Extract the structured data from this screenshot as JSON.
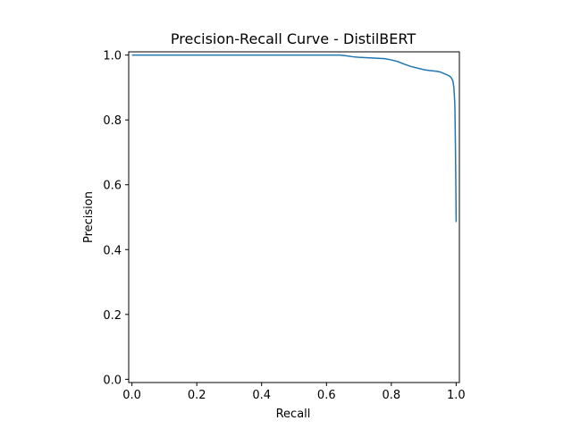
{
  "chart_data": {
    "type": "line",
    "title": "Precision-Recall Curve - DistilBERT",
    "xlabel": "Recall",
    "ylabel": "Precision",
    "xlim": [
      -0.01,
      1.01
    ],
    "ylim": [
      -0.01,
      1.01
    ],
    "xticks": [
      "0.0",
      "0.2",
      "0.4",
      "0.6",
      "0.8",
      "1.0"
    ],
    "yticks": [
      "0.0",
      "0.2",
      "0.4",
      "0.6",
      "0.8",
      "1.0"
    ],
    "grid": false,
    "line_color": "#1f77b4",
    "series": [
      {
        "x": [
          0.0,
          0.05,
          0.2,
          0.4,
          0.6,
          0.64,
          0.66,
          0.68,
          0.7,
          0.72,
          0.74,
          0.76,
          0.78,
          0.8,
          0.82,
          0.84,
          0.86,
          0.88,
          0.9,
          0.92,
          0.94,
          0.95,
          0.96,
          0.97,
          0.98,
          0.985,
          0.99,
          0.993,
          0.996,
          0.997,
          0.998,
          0.999,
          1.0
        ],
        "y": [
          1.0,
          1.0,
          1.0,
          1.0,
          1.0,
          1.0,
          0.998,
          0.995,
          0.993,
          0.992,
          0.991,
          0.99,
          0.989,
          0.985,
          0.98,
          0.972,
          0.965,
          0.96,
          0.955,
          0.952,
          0.95,
          0.948,
          0.944,
          0.94,
          0.935,
          0.93,
          0.92,
          0.9,
          0.85,
          0.78,
          0.7,
          0.6,
          0.485
        ]
      }
    ]
  }
}
